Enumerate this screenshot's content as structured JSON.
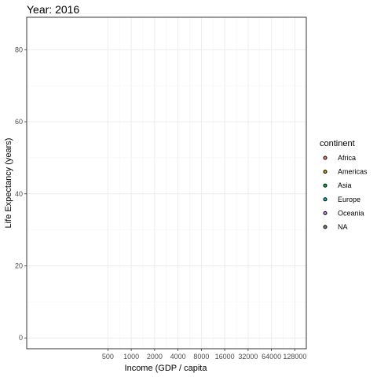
{
  "chart_data": {
    "type": "scatter",
    "title": "Year: 2016",
    "xlabel": "Income (GDP / capita",
    "ylabel": "Life Expectancy (years)",
    "x_scale": "log2",
    "xlim": [
      45,
      180000
    ],
    "ylim": [
      -3,
      89
    ],
    "x_ticks": [
      500,
      1000,
      2000,
      4000,
      8000,
      16000,
      32000,
      64000,
      128000
    ],
    "y_ticks": [
      0,
      20,
      40,
      60,
      80
    ],
    "grid": true,
    "legend": {
      "title": "continent",
      "placement": "right",
      "entries": [
        {
          "label": "Africa",
          "color": "#f8766d"
        },
        {
          "label": "Americas",
          "color": "#b79f00"
        },
        {
          "label": "Asia",
          "color": "#00ba38"
        },
        {
          "label": "Europe",
          "color": "#00bfc4"
        },
        {
          "label": "Oceania",
          "color": "#c77cff"
        },
        {
          "label": "NA",
          "color": "#7f7f7f"
        }
      ]
    },
    "series": []
  }
}
